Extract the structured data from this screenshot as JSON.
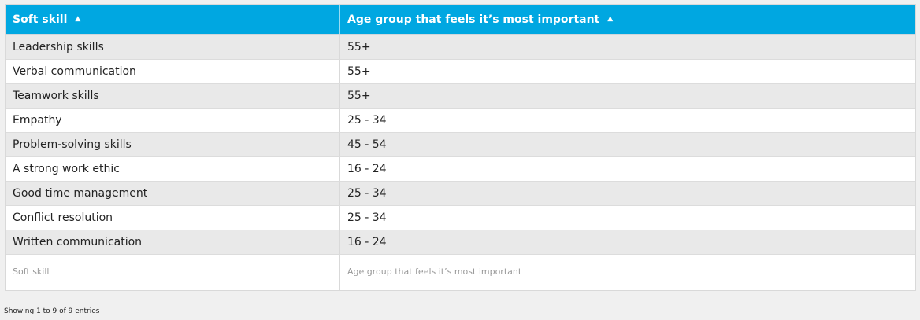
{
  "table": {
    "columns": [
      {
        "label": "Soft skill",
        "sort": "ascending"
      },
      {
        "label": "Age group that feels it’s most important",
        "sort": "ascending"
      }
    ],
    "rows": [
      {
        "skill": "Leadership skills",
        "age": "55+"
      },
      {
        "skill": "Verbal communication",
        "age": "55+"
      },
      {
        "skill": "Teamwork skills",
        "age": "55+"
      },
      {
        "skill": "Empathy",
        "age": "25 - 34"
      },
      {
        "skill": "Problem-solving skills",
        "age": "45 - 54"
      },
      {
        "skill": "A strong work ethic",
        "age": "16 - 24"
      },
      {
        "skill": "Good time management",
        "age": "25 - 34"
      },
      {
        "skill": "Conflict resolution",
        "age": "25 - 34"
      },
      {
        "skill": "Written communication",
        "age": "16 - 24"
      }
    ],
    "filters": {
      "skill_placeholder": "Soft skill",
      "age_placeholder": "Age group that feels it’s most important"
    }
  },
  "info": "Showing 1 to 9 of 9 entries",
  "icons": {
    "sort": "sort-ascending-icon"
  },
  "colors": {
    "header_bg": "#00a7e1",
    "row_alt": "#e9e9e9"
  }
}
